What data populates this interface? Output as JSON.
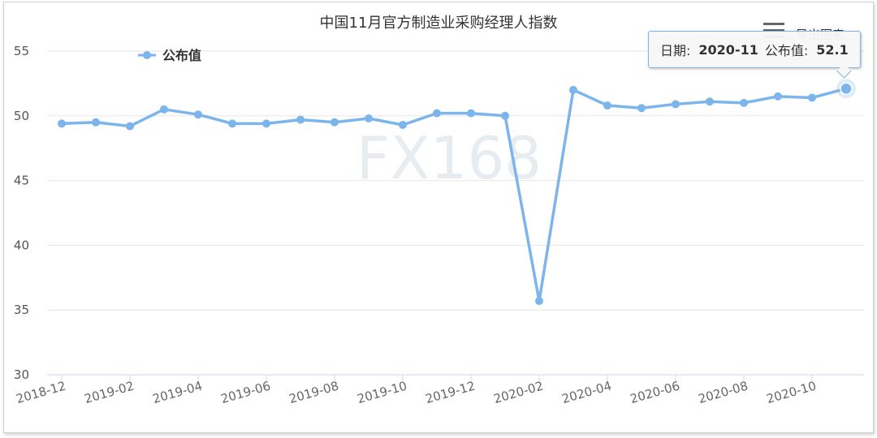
{
  "colors": {
    "series": "#7cb5ec",
    "grid": "#e6e6e6",
    "axis": "#ccd6eb"
  },
  "watermark": "FX168",
  "export_label": "导出图表",
  "export_icon": "hamburger-menu-icon",
  "tooltip": {
    "date_label": "日期:",
    "date_value": "2020-11",
    "value_label": "公布值:",
    "value": "52.1"
  },
  "chart_data": {
    "type": "line",
    "title": "中国11月官方制造业采购经理人指数",
    "xlabel": "",
    "ylabel": "",
    "ylim": [
      30,
      55
    ],
    "yticks": [
      30,
      35,
      40,
      45,
      50,
      55
    ],
    "grid": true,
    "legend_position": "top-left",
    "x": [
      "2018-12",
      "2019-01",
      "2019-02",
      "2019-03",
      "2019-04",
      "2019-05",
      "2019-06",
      "2019-07",
      "2019-08",
      "2019-09",
      "2019-10",
      "2019-11",
      "2019-12",
      "2020-01",
      "2020-02",
      "2020-03",
      "2020-04",
      "2020-05",
      "2020-06",
      "2020-07",
      "2020-08",
      "2020-09",
      "2020-10",
      "2020-11"
    ],
    "xtick_labels": [
      "2018-12",
      "2019-02",
      "2019-04",
      "2019-06",
      "2019-08",
      "2019-10",
      "2019-12",
      "2020-02",
      "2020-04",
      "2020-06",
      "2020-08",
      "2020-10"
    ],
    "series": [
      {
        "name": "公布值",
        "values": [
          49.4,
          49.5,
          49.2,
          50.5,
          50.1,
          49.4,
          49.4,
          49.7,
          49.5,
          49.8,
          49.3,
          50.2,
          50.2,
          50.0,
          35.7,
          52.0,
          50.8,
          50.6,
          50.9,
          51.1,
          51.0,
          51.5,
          51.4,
          52.1
        ]
      }
    ],
    "highlighted_point": "2020-11"
  }
}
